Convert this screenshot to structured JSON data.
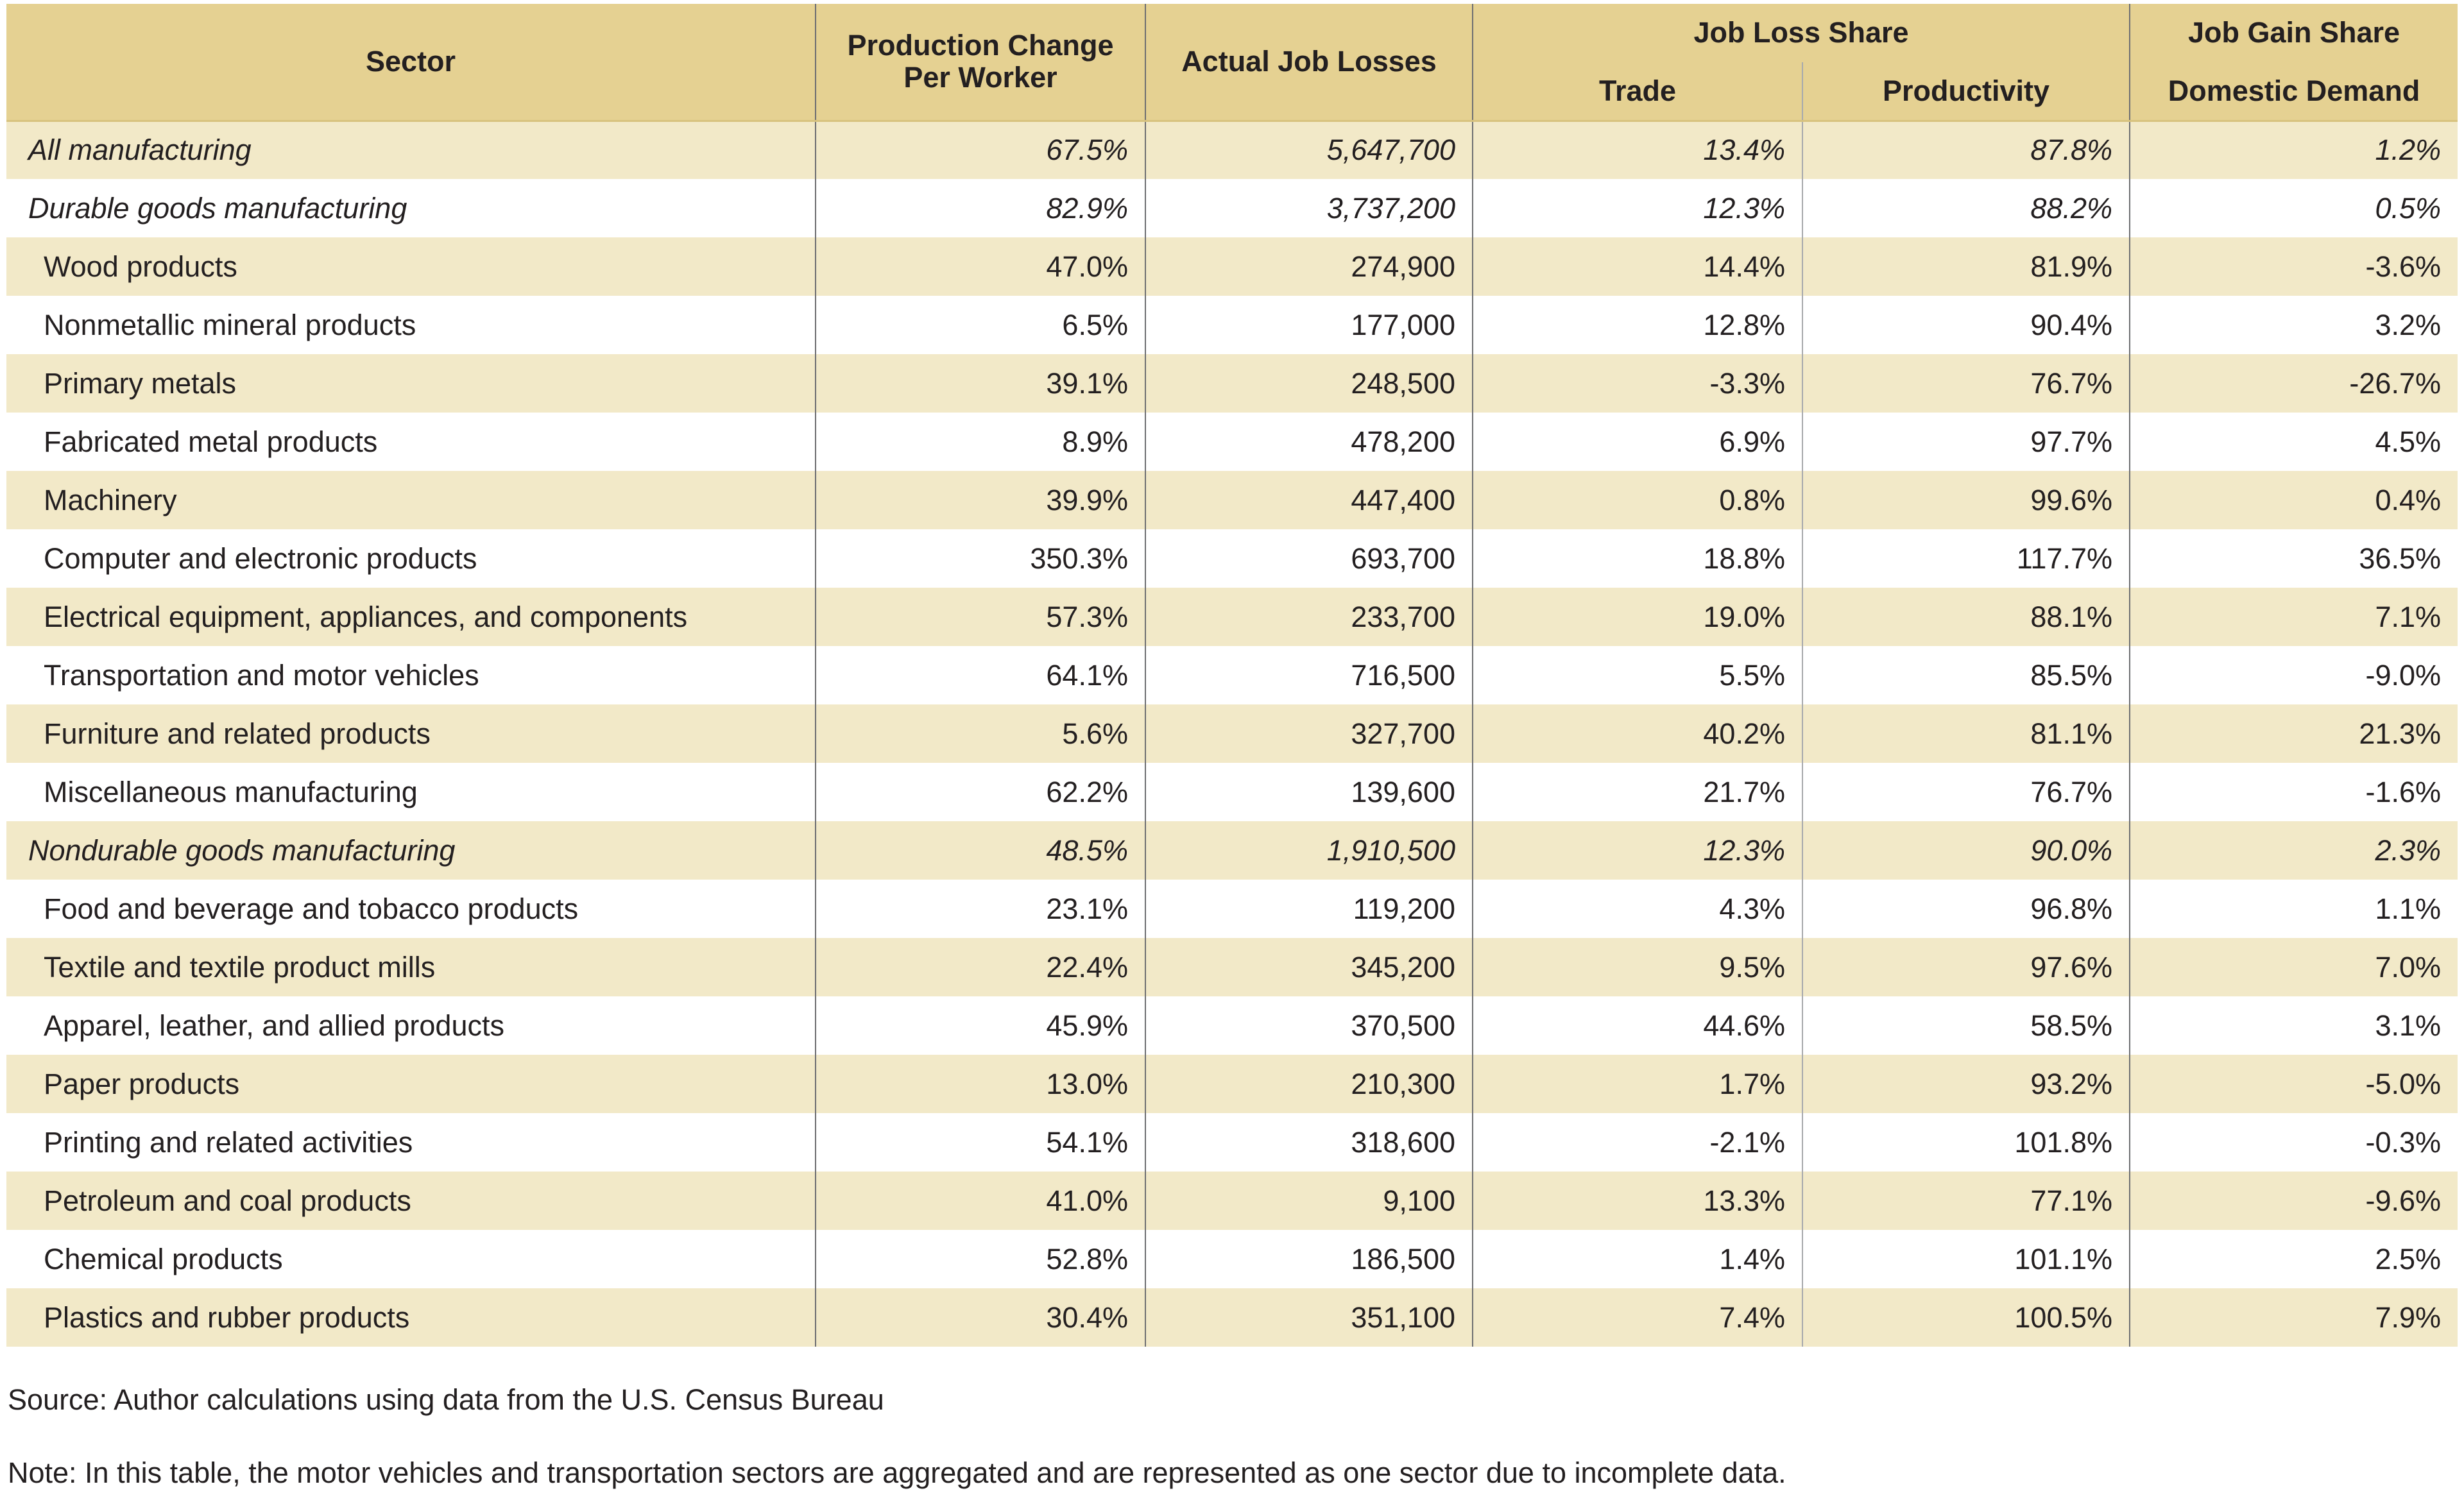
{
  "table": {
    "header": {
      "sector": "Sector",
      "production_change": "Production Change Per Worker",
      "actual_job_losses": "Actual Job Losses",
      "job_loss_share": "Job Loss Share",
      "trade": "Trade",
      "productivity": "Productivity",
      "job_gain_share": "Job Gain Share",
      "domestic_demand": "Domestic Demand"
    },
    "rows": [
      {
        "sector": "All manufacturing",
        "production_change": "67.5%",
        "job_losses": "5,647,700",
        "trade": "13.4%",
        "productivity": "87.8%",
        "domestic_demand": "1.2%",
        "aggregate": true
      },
      {
        "sector": "Durable goods manufacturing",
        "production_change": "82.9%",
        "job_losses": "3,737,200",
        "trade": "12.3%",
        "productivity": "88.2%",
        "domestic_demand": "0.5%",
        "aggregate": true
      },
      {
        "sector": "Wood products",
        "production_change": "47.0%",
        "job_losses": "274,900",
        "trade": "14.4%",
        "productivity": "81.9%",
        "domestic_demand": "-3.6%",
        "aggregate": false
      },
      {
        "sector": "Nonmetallic mineral products",
        "production_change": "6.5%",
        "job_losses": "177,000",
        "trade": "12.8%",
        "productivity": "90.4%",
        "domestic_demand": "3.2%",
        "aggregate": false
      },
      {
        "sector": "Primary metals",
        "production_change": "39.1%",
        "job_losses": "248,500",
        "trade": "-3.3%",
        "productivity": "76.7%",
        "domestic_demand": "-26.7%",
        "aggregate": false
      },
      {
        "sector": "Fabricated metal products",
        "production_change": "8.9%",
        "job_losses": "478,200",
        "trade": "6.9%",
        "productivity": "97.7%",
        "domestic_demand": "4.5%",
        "aggregate": false
      },
      {
        "sector": "Machinery",
        "production_change": "39.9%",
        "job_losses": "447,400",
        "trade": "0.8%",
        "productivity": "99.6%",
        "domestic_demand": "0.4%",
        "aggregate": false
      },
      {
        "sector": "Computer and electronic products",
        "production_change": "350.3%",
        "job_losses": "693,700",
        "trade": "18.8%",
        "productivity": "117.7%",
        "domestic_demand": "36.5%",
        "aggregate": false
      },
      {
        "sector": "Electrical equipment, appliances, and components",
        "production_change": "57.3%",
        "job_losses": "233,700",
        "trade": "19.0%",
        "productivity": "88.1%",
        "domestic_demand": "7.1%",
        "aggregate": false
      },
      {
        "sector": "Transportation and motor vehicles",
        "production_change": "64.1%",
        "job_losses": "716,500",
        "trade": "5.5%",
        "productivity": "85.5%",
        "domestic_demand": "-9.0%",
        "aggregate": false
      },
      {
        "sector": "Furniture and related products",
        "production_change": "5.6%",
        "job_losses": "327,700",
        "trade": "40.2%",
        "productivity": "81.1%",
        "domestic_demand": "21.3%",
        "aggregate": false
      },
      {
        "sector": "Miscellaneous manufacturing",
        "production_change": "62.2%",
        "job_losses": "139,600",
        "trade": "21.7%",
        "productivity": "76.7%",
        "domestic_demand": "-1.6%",
        "aggregate": false
      },
      {
        "sector": "Nondurable goods manufacturing",
        "production_change": "48.5%",
        "job_losses": "1,910,500",
        "trade": "12.3%",
        "productivity": "90.0%",
        "domestic_demand": "2.3%",
        "aggregate": true
      },
      {
        "sector": "Food and beverage and tobacco products",
        "production_change": "23.1%",
        "job_losses": "119,200",
        "trade": "4.3%",
        "productivity": "96.8%",
        "domestic_demand": "1.1%",
        "aggregate": false
      },
      {
        "sector": "Textile and textile product mills",
        "production_change": "22.4%",
        "job_losses": "345,200",
        "trade": "9.5%",
        "productivity": "97.6%",
        "domestic_demand": "7.0%",
        "aggregate": false
      },
      {
        "sector": "Apparel, leather, and allied products",
        "production_change": "45.9%",
        "job_losses": "370,500",
        "trade": "44.6%",
        "productivity": "58.5%",
        "domestic_demand": "3.1%",
        "aggregate": false
      },
      {
        "sector": "Paper products",
        "production_change": "13.0%",
        "job_losses": "210,300",
        "trade": "1.7%",
        "productivity": "93.2%",
        "domestic_demand": "-5.0%",
        "aggregate": false
      },
      {
        "sector": "Printing and related activities",
        "production_change": "54.1%",
        "job_losses": "318,600",
        "trade": "-2.1%",
        "productivity": "101.8%",
        "domestic_demand": "-0.3%",
        "aggregate": false
      },
      {
        "sector": "Petroleum and coal products",
        "production_change": "41.0%",
        "job_losses": "9,100",
        "trade": "13.3%",
        "productivity": "77.1%",
        "domestic_demand": "-9.6%",
        "aggregate": false
      },
      {
        "sector": "Chemical products",
        "production_change": "52.8%",
        "job_losses": "186,500",
        "trade": "1.4%",
        "productivity": "101.1%",
        "domestic_demand": "2.5%",
        "aggregate": false
      },
      {
        "sector": "Plastics and rubber products",
        "production_change": "30.4%",
        "job_losses": "351,100",
        "trade": "7.4%",
        "productivity": "100.5%",
        "domestic_demand": "7.9%",
        "aggregate": false
      }
    ]
  },
  "footer": {
    "source": "Source: Author calculations using data from the U.S. Census Bureau",
    "note": "Note: In this table, the motor vehicles and transportation sectors are aggregated and are represented as one sector due to incomplete data."
  },
  "colors": {
    "header_bg": "#e5d192",
    "row_alt_bg": "#f2e9c8",
    "row_bg": "#ffffff",
    "text": "#231f20",
    "divider_dark": "#6e6f72",
    "divider_light": "#a8aaad",
    "header_bottom_edge": "#d8c37e"
  }
}
